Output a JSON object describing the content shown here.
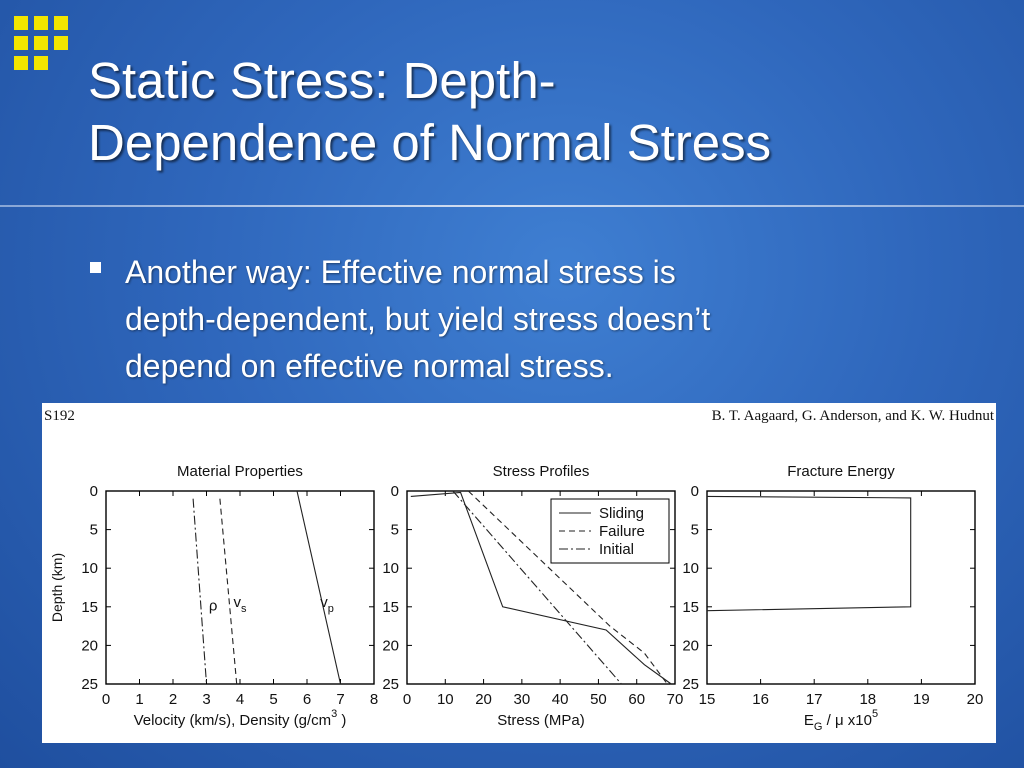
{
  "slide": {
    "title_line1": "Static Stress: Depth-",
    "title_line2": "Dependence of Normal Stress",
    "bullet_line1": "Another way:  Effective normal stress is",
    "bullet_line2": "depth-dependent, but yield stress doesn’t",
    "bullet_line3": "depend on effective normal stress."
  },
  "figure": {
    "page_id": "S192",
    "authors": "B. T. Aagaard, G. Anderson, and K. W. Hudnut"
  },
  "colors": {
    "background": "#2f67bc",
    "logo_squares": "#f2e600",
    "title_text": "#ffffff"
  },
  "chart_data": [
    {
      "type": "line",
      "title": "Material Properties",
      "xlabel_main": "Velocity (km/s), Density (g/cm",
      "xlabel_sup": "3",
      "xlabel_end": " )",
      "ylabel": "Depth (km)",
      "xlim": [
        0,
        8
      ],
      "ylim": [
        0,
        25
      ],
      "y_inverted": true,
      "x_ticks": [
        0,
        1,
        2,
        3,
        4,
        5,
        6,
        7,
        8
      ],
      "y_ticks": [
        0,
        5,
        10,
        15,
        20,
        25
      ],
      "series": [
        {
          "label": "ρ",
          "style": "dashdot",
          "x": [
            2.6,
            3.0
          ],
          "y": [
            1,
            25
          ],
          "label_at": [
            3.2,
            15.5
          ],
          "label_sub": ""
        },
        {
          "label": "v",
          "label_sub": "s",
          "style": "dashed",
          "x": [
            3.4,
            3.9
          ],
          "y": [
            1,
            25
          ],
          "label_at": [
            4.0,
            15.0
          ]
        },
        {
          "label": "v",
          "label_sub": "p",
          "style": "solid",
          "x": [
            5.7,
            7.0
          ],
          "y": [
            0,
            25
          ],
          "label_at": [
            6.6,
            15.0
          ]
        }
      ]
    },
    {
      "type": "line",
      "title": "Stress Profiles",
      "xlabel": "Stress (MPa)",
      "xlim": [
        0,
        70
      ],
      "ylim": [
        0,
        25
      ],
      "y_inverted": true,
      "x_ticks": [
        0,
        10,
        20,
        30,
        40,
        50,
        60,
        70
      ],
      "y_ticks": [
        0,
        5,
        10,
        15,
        20,
        25
      ],
      "legend_position": "top-right",
      "series": [
        {
          "name": "Sliding",
          "style": "solid",
          "x": [
            1,
            14,
            25,
            52,
            62,
            69
          ],
          "y": [
            0.7,
            0.2,
            15,
            18,
            22.5,
            25
          ]
        },
        {
          "name": "Failure",
          "style": "dashed",
          "x": [
            16,
            53,
            62,
            68
          ],
          "y": [
            0,
            17.5,
            21,
            25
          ]
        },
        {
          "name": "Initial",
          "style": "dashdot",
          "x": [
            12,
            56
          ],
          "y": [
            0,
            25
          ]
        }
      ]
    },
    {
      "type": "line",
      "title": "Fracture Energy",
      "xlabel_main": "E",
      "xlabel_sub": "G",
      "xlabel_mid": " / μ x10",
      "xlabel_sup": "5",
      "xlim": [
        15,
        20
      ],
      "ylim": [
        0,
        25
      ],
      "y_inverted": true,
      "x_ticks": [
        15,
        16,
        17,
        18,
        19,
        20
      ],
      "y_ticks": [
        0,
        5,
        10,
        15,
        20,
        25
      ],
      "series": [
        {
          "style": "solid",
          "x": [
            15,
            18.8,
            18.8,
            15
          ],
          "y": [
            0.7,
            0.9,
            15,
            15.5
          ]
        }
      ]
    }
  ]
}
